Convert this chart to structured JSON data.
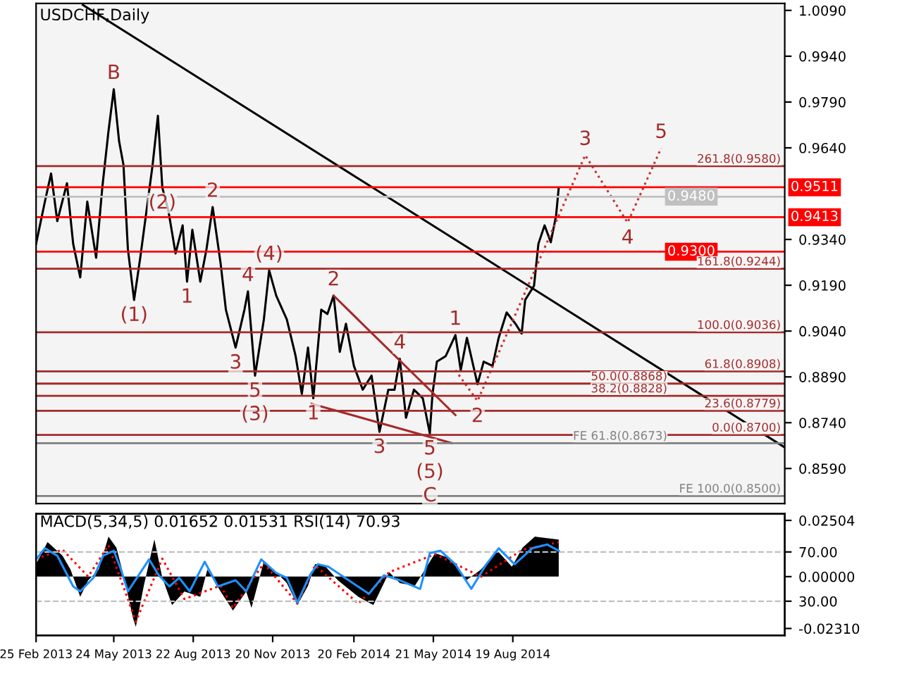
{
  "chart_data": [
    {
      "type": "line",
      "title": "USDCHF,Daily",
      "xlim": [
        "2013-02-25",
        "2015-06-23"
      ],
      "ylim": [
        0.8475,
        1.0113
      ],
      "tick_labels": "y",
      "yticks": [
        {
          "value": 1.009,
          "label": "1.0090"
        },
        {
          "value": 0.994,
          "label": "0.9940"
        },
        {
          "value": 0.979,
          "label": "0.9790"
        },
        {
          "value": 0.964,
          "label": "0.9640"
        },
        {
          "value": 0.934,
          "label": "0.9340"
        },
        {
          "value": 0.919,
          "label": "0.9190"
        },
        {
          "value": 0.904,
          "label": "0.9040"
        },
        {
          "value": 0.889,
          "label": "0.8890"
        },
        {
          "value": 0.874,
          "label": "0.8740"
        },
        {
          "value": 0.859,
          "label": "0.8590"
        }
      ],
      "series": [
        {
          "color": "#000000",
          "x": [
            "2013-02-25",
            "2013-03-07",
            "2013-03-14",
            "2013-03-21",
            "2013-04-01",
            "2013-04-08",
            "2013-04-16",
            "2013-04-24",
            "2013-05-04",
            "2013-05-11",
            "2013-05-18",
            "2013-05-24",
            "2013-05-30",
            "2013-06-04",
            "2013-06-09",
            "2013-06-16",
            "2013-06-23",
            "2013-06-30",
            "2013-07-07",
            "2013-07-13",
            "2013-07-18",
            "2013-07-25",
            "2013-08-02",
            "2013-08-10",
            "2013-08-15",
            "2013-08-21",
            "2013-08-30",
            "2013-09-06",
            "2013-09-13",
            "2013-09-22",
            "2013-09-28",
            "2013-10-09",
            "2013-10-19",
            "2013-10-23",
            "2013-10-31",
            "2013-11-10",
            "2013-11-16",
            "2013-11-24",
            "2013-12-06",
            "2013-12-16",
            "2013-12-23",
            "2013-12-30",
            "2014-01-05",
            "2014-01-14",
            "2014-01-21",
            "2014-01-28",
            "2014-02-04",
            "2014-02-11",
            "2014-02-20",
            "2014-03-02",
            "2014-03-12",
            "2014-03-21",
            "2014-03-31",
            "2014-04-07",
            "2014-04-13",
            "2014-04-20",
            "2014-04-29",
            "2014-05-09",
            "2014-05-17",
            "2014-05-20",
            "2014-05-25",
            "2014-06-04",
            "2014-06-15",
            "2014-06-21",
            "2014-06-28",
            "2014-07-10",
            "2014-07-17",
            "2014-07-27",
            "2014-08-03",
            "2014-08-12",
            "2014-08-22",
            "2014-08-29",
            "2014-09-02",
            "2014-09-12",
            "2014-09-17",
            "2014-09-24",
            "2014-10-01",
            "2014-10-07",
            "2014-10-10"
          ],
          "values": [
            0.9326,
            0.9464,
            0.9556,
            0.94,
            0.9524,
            0.9326,
            0.9216,
            0.9464,
            0.928,
            0.951,
            0.9694,
            0.9832,
            0.9662,
            0.9584,
            0.9308,
            0.9142,
            0.928,
            0.9432,
            0.9584,
            0.9745,
            0.951,
            0.9432,
            0.9294,
            0.9386,
            0.9202,
            0.9372,
            0.9202,
            0.9308,
            0.9446,
            0.9262,
            0.911,
            0.8986,
            0.911,
            0.917,
            0.8894,
            0.9078,
            0.9239,
            0.9156,
            0.9078,
            0.8958,
            0.8834,
            0.8986,
            0.882,
            0.911,
            0.9096,
            0.9156,
            0.8972,
            0.9064,
            0.8926,
            0.8848,
            0.8894,
            0.871,
            0.8848,
            0.8848,
            0.8949,
            0.8756,
            0.8848,
            0.882,
            0.8705,
            0.8834,
            0.894,
            0.8958,
            0.9027,
            0.8912,
            0.9018,
            0.8866,
            0.894,
            0.8926,
            0.9018,
            0.9101,
            0.9064,
            0.9032,
            0.9142,
            0.9188,
            0.9326,
            0.9386,
            0.9331,
            0.9418,
            0.951
          ]
        },
        {
          "color": "#000000",
          "x": [
            "2013-04-19",
            "2015-06-23"
          ],
          "values": [
            1.0108,
            0.8659
          ]
        },
        {
          "color": "#a52a2a",
          "x": [
            "2014-01-28",
            "2014-06-15"
          ],
          "values": [
            0.9156,
            0.8765
          ]
        },
        {
          "color": "#a52a2a",
          "x": [
            "2014-01-03",
            "2014-06-11"
          ],
          "values": [
            0.8802,
            0.8673
          ]
        },
        {
          "color": "#c83030",
          "line_style": "dotted",
          "x": [
            "2014-06-15",
            "2014-07-10",
            "2014-11-09",
            "2014-12-27",
            "2015-02-03"
          ],
          "values": [
            0.8912,
            0.8811,
            0.9616,
            0.9395,
            0.9639
          ]
        }
      ],
      "ref_lines": [
        {
          "axis": "y",
          "value": 0.9511,
          "label": "0.9511",
          "color": "#ff0000"
        },
        {
          "axis": "y",
          "value": 0.948,
          "label": "0.9480",
          "color": "#c0c0c0"
        },
        {
          "axis": "y",
          "value": 0.9413,
          "label": "0.9413",
          "color": "#ff0000"
        },
        {
          "axis": "y",
          "value": 0.93,
          "label": "0.9300",
          "color": "#ff0000"
        },
        {
          "axis": "y",
          "value": 0.958,
          "label": "261.8(0.9580)",
          "color": "#a52a2a"
        },
        {
          "axis": "y",
          "value": 0.9244,
          "label": "161.8(0.9244)",
          "color": "#a52a2a"
        },
        {
          "axis": "y",
          "value": 0.9036,
          "label": "100.0(0.9036)",
          "color": "#a52a2a"
        },
        {
          "axis": "y",
          "value": 0.8908,
          "label": "61.8(0.8908)",
          "color": "#a52a2a"
        },
        {
          "axis": "y",
          "value": 0.8868,
          "label": "50.0(0.8868)",
          "color": "#a52a2a"
        },
        {
          "axis": "y",
          "value": 0.8828,
          "label": "38.2(0.8828)",
          "color": "#a52a2a"
        },
        {
          "axis": "y",
          "value": 0.8779,
          "label": "23.6(0.8779)",
          "color": "#a52a2a"
        },
        {
          "axis": "y",
          "value": 0.87,
          "label": "0.0(0.8700)",
          "color": "#a52a2a"
        },
        {
          "axis": "y",
          "value": 0.8673,
          "label": "FE 61.8(0.8673)",
          "color": "#808080"
        },
        {
          "axis": "y",
          "value": 0.85,
          "label": "FE 100.0(0.8500)",
          "color": "#808080"
        }
      ],
      "annotations": [
        {
          "text": "B",
          "x": "2013-05-24",
          "y": 0.9832
        },
        {
          "text": "(2)",
          "x": "2013-07-18",
          "y": 0.951
        },
        {
          "text": "(1)",
          "x": "2013-06-16",
          "y": 0.9142
        },
        {
          "text": "1",
          "x": "2013-08-15",
          "y": 0.9202
        },
        {
          "text": "2",
          "x": "2013-09-13",
          "y": 0.9446
        },
        {
          "text": "3",
          "x": "2013-10-09",
          "y": 0.8986
        },
        {
          "text": "4",
          "x": "2013-10-23",
          "y": 0.917
        },
        {
          "text": "5",
          "x": "2013-10-31",
          "y": 0.8894
        },
        {
          "text": "(3)",
          "x": "2013-10-31",
          "y": 0.8894
        },
        {
          "text": "(4)",
          "x": "2013-11-16",
          "y": 0.9239
        },
        {
          "text": "1",
          "x": "2014-01-05",
          "y": 0.882
        },
        {
          "text": "2",
          "x": "2014-01-28",
          "y": 0.9156
        },
        {
          "text": "3",
          "x": "2014-03-21",
          "y": 0.871
        },
        {
          "text": "4",
          "x": "2014-04-13",
          "y": 0.8949
        },
        {
          "text": "5",
          "x": "2014-05-17",
          "y": 0.8705
        },
        {
          "text": "(5)",
          "x": "2014-05-17",
          "y": 0.8705
        },
        {
          "text": "C",
          "x": "2014-05-17",
          "y": 0.8705
        },
        {
          "text": "1",
          "x": "2014-06-15",
          "y": 0.9027
        },
        {
          "text": "2",
          "x": "2014-07-10",
          "y": 0.8811
        },
        {
          "text": "3",
          "x": "2014-11-09",
          "y": 0.9616
        },
        {
          "text": "4",
          "x": "2014-12-27",
          "y": 0.9395
        },
        {
          "text": "5",
          "x": "2015-02-03",
          "y": 0.9639
        }
      ]
    },
    {
      "type": "line",
      "title": "MACD(5,34,5) 0.01652 0.01531 RSI(14) 70.93",
      "xlim": [
        "2013-02-25",
        "2015-06-23"
      ],
      "ylim": [
        2.2,
        101
      ],
      "y2lim": [
        -0.0262,
        0.028
      ],
      "grid": "y",
      "xticks": [
        {
          "value": "2013-02-25",
          "label": "25 Feb 2013"
        },
        {
          "value": "2013-05-24",
          "label": "24 May 2013"
        },
        {
          "value": "2013-08-22",
          "label": "22 Aug 2013"
        },
        {
          "value": "2013-11-20",
          "label": "20 Nov 2013"
        },
        {
          "value": "2014-02-20",
          "label": "20 Feb 2014"
        },
        {
          "value": "2014-05-21",
          "label": "21 May 2014"
        },
        {
          "value": "2014-08-19",
          "label": "19 Aug 2014"
        }
      ],
      "yticks": [
        {
          "value": 70,
          "label": "70.00"
        },
        {
          "value": 30,
          "label": "30.00"
        }
      ],
      "y2ticks": [
        {
          "value": 0.02504,
          "label": "0.02504"
        },
        {
          "value": 0,
          "label": "0.00000"
        },
        {
          "value": -0.0231,
          "label": "-0.02310"
        }
      ],
      "series": [
        {
          "type": "area",
          "axis": "y2",
          "color": "#000000",
          "x": [
            "2013-02-25",
            "2013-03-10",
            "2013-03-27",
            "2013-04-05",
            "2013-04-16",
            "2013-04-25",
            "2013-05-07",
            "2013-05-18",
            "2013-05-27",
            "2013-06-04",
            "2013-06-15",
            "2013-06-18",
            "2013-06-27",
            "2013-07-09",
            "2013-07-18",
            "2013-07-29",
            "2013-08-12",
            "2013-08-30",
            "2013-09-07",
            "2013-09-22",
            "2013-10-06",
            "2013-10-21",
            "2013-10-27",
            "2013-11-10",
            "2013-11-24",
            "2013-12-06",
            "2013-12-18",
            "2013-12-30",
            "2014-01-07",
            "2014-01-19",
            "2014-02-02",
            "2014-02-25",
            "2014-03-14",
            "2014-04-01",
            "2014-04-13",
            "2014-04-30",
            "2014-05-23",
            "2014-06-09",
            "2014-06-27",
            "2014-07-14",
            "2014-08-01",
            "2014-08-18",
            "2014-08-30",
            "2014-09-13",
            "2014-10-10"
          ],
          "values": [
            0.0056,
            0.0154,
            0.0093,
            0.0032,
            -0.009,
            -0.0017,
            0.0032,
            0.0178,
            0.0129,
            0.0007,
            -0.0188,
            -0.0224,
            -0.0041,
            0.0166,
            -0.0005,
            -0.0127,
            -0.0066,
            -0.009,
            0.0032,
            -0.0066,
            -0.0151,
            -0.0066,
            -0.0139,
            0.0068,
            0.002,
            -0.0029,
            -0.0127,
            -0.0041,
            0.0056,
            0.0044,
            -0.0017,
            -0.009,
            -0.0127,
            0.002,
            -0.0029,
            -0.0041,
            0.0105,
            0.0081,
            -0.0017,
            0.0032,
            0.0117,
            0.0044,
            0.0129,
            0.0178,
            0.0165
          ]
        },
        {
          "type": "line",
          "axis": "y2",
          "color": "#ff0000",
          "line_style": "dotted",
          "x": [
            "2013-02-25",
            "2013-03-27",
            "2013-04-25",
            "2013-05-18",
            "2013-06-18",
            "2013-07-18",
            "2013-08-12",
            "2013-09-22",
            "2013-10-06",
            "2013-11-10",
            "2013-12-18",
            "2014-01-07",
            "2014-02-25",
            "2014-04-01",
            "2014-05-23",
            "2014-07-14",
            "2014-08-30",
            "2014-10-10"
          ],
          "values": [
            0.008,
            0.012,
            0.0,
            0.014,
            -0.02,
            0.008,
            -0.01,
            -0.004,
            -0.014,
            0.006,
            -0.012,
            0.005,
            -0.012,
            0.002,
            0.01,
            0.0,
            0.012,
            0.0153
          ]
        },
        {
          "type": "line",
          "color": "#1e90ff",
          "x": [
            "2013-02-25",
            "2013-03-07",
            "2013-03-21",
            "2013-04-08",
            "2013-04-16",
            "2013-05-01",
            "2013-05-12",
            "2013-05-24",
            "2013-06-01",
            "2013-06-09",
            "2013-06-21",
            "2013-07-03",
            "2013-07-14",
            "2013-07-26",
            "2013-08-06",
            "2013-08-18",
            "2013-09-04",
            "2013-09-19",
            "2013-10-09",
            "2013-10-21",
            "2013-11-07",
            "2013-11-24",
            "2013-12-06",
            "2013-12-18",
            "2014-01-01",
            "2014-01-10",
            "2014-01-22",
            "2014-02-14",
            "2014-03-09",
            "2014-03-26",
            "2014-04-13",
            "2014-05-06",
            "2014-05-17",
            "2014-05-29",
            "2014-06-15",
            "2014-07-03",
            "2014-07-20",
            "2014-08-03",
            "2014-08-21",
            "2014-09-10",
            "2014-09-27",
            "2014-10-10"
          ],
          "values": [
            64,
            73,
            67,
            42,
            38,
            49,
            67,
            71,
            56,
            38,
            51,
            64,
            51,
            42,
            49,
            38,
            62,
            42,
            47,
            38,
            64,
            53,
            49,
            29,
            51,
            60,
            58,
            47,
            36,
            51,
            47,
            40,
            69,
            71,
            60,
            40,
            60,
            73,
            60,
            73,
            76,
            71
          ]
        }
      ]
    }
  ]
}
